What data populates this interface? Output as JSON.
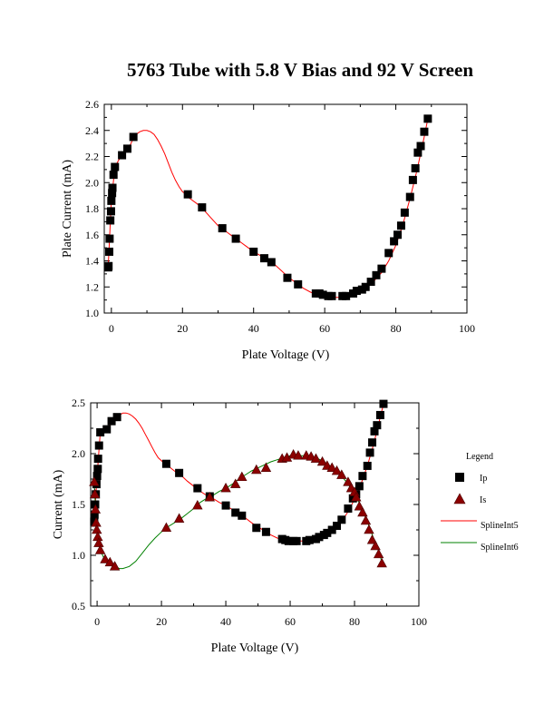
{
  "title": "5763 Tube with 5.8 V Bias and 92 V Screen",
  "chart_data": [
    {
      "type": "scatter",
      "xlabel": "Plate Voltage (V)",
      "ylabel": "Plate Current (mA)",
      "xlim": [
        -2,
        100
      ],
      "ylim": [
        1.0,
        2.6
      ],
      "xticks": [
        0,
        20,
        40,
        60,
        80,
        100
      ],
      "yticks": [
        1.0,
        1.2,
        1.4,
        1.6,
        1.8,
        2.0,
        2.2,
        2.4,
        2.6
      ],
      "ytick_format": 1,
      "series": [
        {
          "name": "Ip",
          "marker": "square",
          "color": "#000000",
          "x": [
            -0.9,
            -0.8,
            -0.6,
            -0.5,
            -0.3,
            -0.1,
            0.0,
            0.2,
            0.3,
            0.6,
            1.0,
            3.0,
            4.5,
            6.2,
            21.5,
            25.5,
            31.2,
            35.0,
            40.0,
            43.0,
            45.0,
            49.5,
            52.5,
            57.5,
            58.5,
            59.5,
            61.0,
            62.0,
            65.0,
            66.0,
            68.0,
            69.0,
            70.5,
            71.5,
            73.0,
            74.5,
            76.0,
            78.0,
            79.5,
            80.5,
            81.5,
            82.5,
            84.0,
            84.8,
            85.5,
            86.2,
            87.0,
            88.0,
            89.0
          ],
          "y": [
            1.35,
            1.36,
            1.47,
            1.57,
            1.71,
            1.78,
            1.86,
            1.92,
            1.96,
            2.06,
            2.12,
            2.21,
            2.26,
            2.35,
            1.91,
            1.81,
            1.65,
            1.57,
            1.47,
            1.42,
            1.39,
            1.27,
            1.22,
            1.15,
            1.15,
            1.14,
            1.13,
            1.13,
            1.13,
            1.13,
            1.15,
            1.17,
            1.18,
            1.2,
            1.24,
            1.29,
            1.34,
            1.46,
            1.55,
            1.6,
            1.67,
            1.77,
            1.89,
            2.02,
            2.11,
            2.23,
            2.28,
            2.39,
            2.49
          ]
        },
        {
          "name": "SplineInt5",
          "line": true,
          "color": "#ff0000",
          "x": [
            -0.9,
            0,
            1,
            2,
            3,
            4,
            5,
            6,
            7,
            8,
            9,
            10,
            11,
            12,
            13,
            14,
            15,
            16,
            17,
            18,
            19,
            20,
            21,
            22,
            24,
            26,
            28,
            30,
            32,
            34,
            36,
            38,
            40,
            42,
            44,
            46,
            48,
            50,
            52,
            54,
            56,
            58,
            60,
            62,
            64,
            66,
            68,
            70,
            72,
            74,
            76,
            78,
            80,
            82,
            84,
            86,
            88,
            89
          ],
          "y": [
            1.35,
            1.86,
            2.12,
            2.17,
            2.21,
            2.24,
            2.27,
            2.33,
            2.37,
            2.39,
            2.4,
            2.4,
            2.39,
            2.37,
            2.33,
            2.28,
            2.22,
            2.15,
            2.08,
            2.02,
            1.97,
            1.93,
            1.91,
            1.88,
            1.84,
            1.79,
            1.73,
            1.67,
            1.63,
            1.59,
            1.55,
            1.51,
            1.47,
            1.44,
            1.41,
            1.37,
            1.32,
            1.27,
            1.23,
            1.19,
            1.16,
            1.14,
            1.13,
            1.12,
            1.12,
            1.13,
            1.15,
            1.17,
            1.21,
            1.25,
            1.31,
            1.4,
            1.52,
            1.68,
            1.88,
            2.1,
            2.35,
            2.49
          ]
        }
      ]
    },
    {
      "type": "scatter",
      "xlabel": "Plate Voltage (V)",
      "ylabel": "Current (mA)",
      "xlim": [
        -2,
        100
      ],
      "ylim": [
        0.5,
        2.5
      ],
      "xticks": [
        0,
        20,
        40,
        60,
        80,
        100
      ],
      "yticks": [
        0.5,
        1.0,
        1.5,
        2.0,
        2.5
      ],
      "ytick_format": 1,
      "legend": {
        "title": "Legend",
        "position": "right",
        "entries": [
          {
            "label": "Ip",
            "kind": "square",
            "color": "#000000"
          },
          {
            "label": "Is",
            "kind": "triangle",
            "color": "#8b0000"
          },
          {
            "label": "SplineInt5",
            "kind": "line",
            "color": "#ff0000"
          },
          {
            "label": "SplineInt6",
            "kind": "line",
            "color": "#008000"
          }
        ]
      },
      "series": [
        {
          "name": "Ip",
          "marker": "square",
          "color": "#000000",
          "x": [
            -0.9,
            -0.8,
            -0.6,
            -0.4,
            -0.2,
            0.0,
            0.2,
            0.3,
            0.6,
            1.0,
            3.0,
            4.5,
            6.2,
            21.5,
            25.5,
            31.2,
            35.0,
            40.0,
            43.0,
            45.0,
            49.5,
            52.5,
            57.5,
            58.5,
            59.5,
            61.0,
            62.0,
            65.0,
            66.0,
            68.0,
            69.0,
            70.5,
            71.5,
            73.0,
            74.5,
            76.0,
            78.0,
            79.5,
            80.5,
            81.5,
            82.5,
            84.0,
            84.8,
            85.5,
            86.2,
            87.0,
            88.0,
            89.0
          ],
          "y": [
            1.33,
            1.4,
            1.5,
            1.6,
            1.7,
            1.78,
            1.85,
            1.95,
            2.08,
            2.21,
            2.24,
            2.32,
            2.36,
            1.9,
            1.81,
            1.66,
            1.58,
            1.49,
            1.42,
            1.39,
            1.27,
            1.23,
            1.16,
            1.15,
            1.14,
            1.14,
            1.14,
            1.14,
            1.15,
            1.16,
            1.18,
            1.2,
            1.22,
            1.25,
            1.29,
            1.35,
            1.46,
            1.56,
            1.6,
            1.68,
            1.78,
            1.88,
            2.01,
            2.11,
            2.22,
            2.28,
            2.38,
            2.49
          ]
        },
        {
          "name": "Is",
          "marker": "triangle",
          "color": "#8b0000",
          "x": [
            -0.9,
            -0.7,
            -0.5,
            -0.3,
            -0.1,
            0.2,
            0.5,
            1.0,
            2.5,
            4.0,
            5.5,
            21.5,
            25.5,
            31.2,
            35.0,
            40.0,
            43.0,
            45.0,
            49.5,
            52.5,
            57.5,
            59.0,
            61.0,
            62.5,
            65.0,
            66.5,
            68.0,
            70.0,
            71.5,
            73.0,
            74.5,
            76.0,
            78.0,
            79.0,
            80.0,
            80.5,
            81.5,
            82.5,
            83.5,
            84.5,
            85.5,
            86.5,
            87.5,
            88.5
          ],
          "y": [
            1.72,
            1.6,
            1.45,
            1.32,
            1.25,
            1.18,
            1.12,
            1.05,
            0.96,
            0.93,
            0.89,
            1.27,
            1.36,
            1.49,
            1.57,
            1.66,
            1.7,
            1.77,
            1.84,
            1.86,
            1.95,
            1.96,
            1.99,
            1.98,
            1.98,
            1.97,
            1.95,
            1.92,
            1.88,
            1.86,
            1.83,
            1.79,
            1.72,
            1.66,
            1.62,
            1.57,
            1.48,
            1.42,
            1.34,
            1.25,
            1.15,
            1.09,
            1.01,
            0.92
          ]
        },
        {
          "name": "SplineInt5",
          "line": true,
          "color": "#ff0000",
          "x": [
            -0.9,
            0,
            1,
            2,
            3,
            4,
            5,
            6,
            7,
            8,
            9,
            10,
            11,
            12,
            13,
            14,
            15,
            16,
            17,
            18,
            19,
            20,
            21,
            22,
            24,
            26,
            28,
            30,
            32,
            34,
            36,
            38,
            40,
            42,
            44,
            46,
            48,
            50,
            52,
            54,
            56,
            58,
            60,
            62,
            64,
            66,
            68,
            70,
            72,
            74,
            76,
            78,
            80,
            82,
            84,
            86,
            88,
            89
          ],
          "y": [
            1.33,
            1.78,
            2.21,
            2.22,
            2.24,
            2.28,
            2.32,
            2.35,
            2.38,
            2.4,
            2.4,
            2.39,
            2.37,
            2.34,
            2.3,
            2.25,
            2.19,
            2.13,
            2.07,
            2.01,
            1.96,
            1.93,
            1.9,
            1.88,
            1.83,
            1.79,
            1.73,
            1.68,
            1.63,
            1.59,
            1.56,
            1.52,
            1.49,
            1.45,
            1.41,
            1.37,
            1.32,
            1.28,
            1.24,
            1.2,
            1.17,
            1.15,
            1.14,
            1.14,
            1.14,
            1.15,
            1.16,
            1.19,
            1.22,
            1.26,
            1.33,
            1.43,
            1.55,
            1.7,
            1.88,
            2.1,
            2.36,
            2.49
          ]
        },
        {
          "name": "SplineInt6",
          "line": true,
          "color": "#008000",
          "x": [
            -0.9,
            0,
            1,
            2,
            3,
            4,
            5,
            6,
            7,
            8,
            10,
            12,
            14,
            16,
            18,
            20,
            22,
            24,
            26,
            28,
            30,
            32,
            34,
            36,
            38,
            40,
            42,
            44,
            46,
            48,
            50,
            52,
            54,
            56,
            58,
            60,
            62,
            64,
            66,
            68,
            70,
            72,
            74,
            76,
            78,
            80,
            82,
            84,
            86,
            88,
            88.5
          ],
          "y": [
            1.72,
            1.18,
            1.05,
            0.98,
            0.95,
            0.92,
            0.9,
            0.88,
            0.87,
            0.87,
            0.89,
            0.94,
            1.02,
            1.1,
            1.17,
            1.23,
            1.28,
            1.32,
            1.36,
            1.41,
            1.46,
            1.52,
            1.56,
            1.59,
            1.63,
            1.66,
            1.7,
            1.75,
            1.79,
            1.83,
            1.86,
            1.89,
            1.92,
            1.94,
            1.96,
            1.98,
            1.98,
            1.98,
            1.97,
            1.96,
            1.93,
            1.89,
            1.84,
            1.78,
            1.7,
            1.61,
            1.48,
            1.33,
            1.16,
            1.0,
            0.92
          ]
        }
      ]
    }
  ]
}
